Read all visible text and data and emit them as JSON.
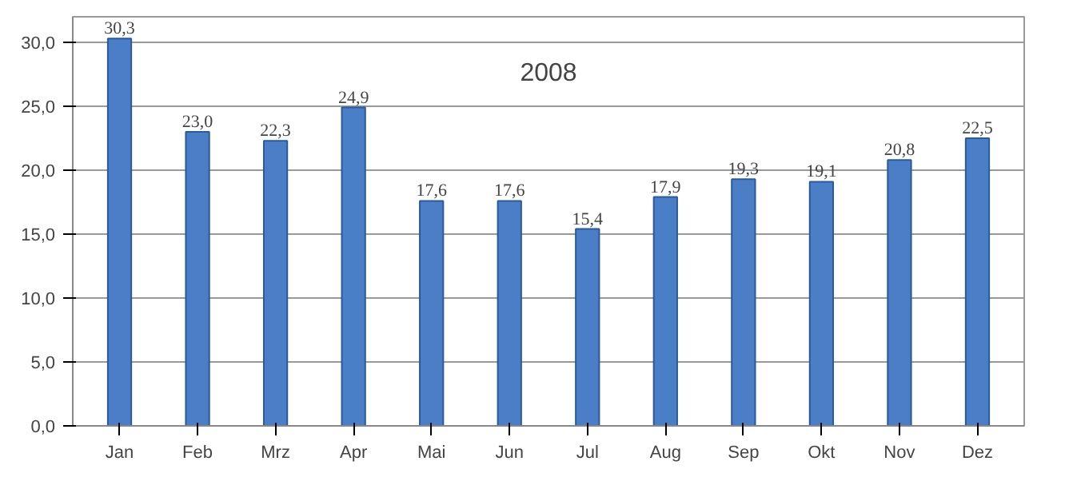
{
  "chart_data": {
    "type": "bar",
    "title": "2008",
    "categories": [
      "Jan",
      "Feb",
      "Mrz",
      "Apr",
      "Mai",
      "Jun",
      "Jul",
      "Aug",
      "Sep",
      "Okt",
      "Nov",
      "Dez"
    ],
    "values": [
      30.3,
      23.0,
      22.3,
      24.9,
      17.6,
      17.6,
      15.4,
      17.9,
      19.3,
      19.1,
      20.8,
      22.5
    ],
    "value_labels": [
      "30,3",
      "23,0",
      "22,3",
      "24,9",
      "17,6",
      "17,6",
      "15,4",
      "17,9",
      "19,3",
      "19,1",
      "20,8",
      "22,5"
    ],
    "color": "#4a7fc8",
    "ylim": [
      0,
      32
    ],
    "yticks": [
      {
        "value": 0,
        "label": "0,0"
      },
      {
        "value": 5,
        "label": "5,0"
      },
      {
        "value": 10,
        "label": "10,0"
      },
      {
        "value": 15,
        "label": "15,0"
      },
      {
        "value": 20,
        "label": "20,0"
      },
      {
        "value": 25,
        "label": "25,0"
      },
      {
        "value": 30,
        "label": "30,0"
      }
    ],
    "grid": "y"
  }
}
